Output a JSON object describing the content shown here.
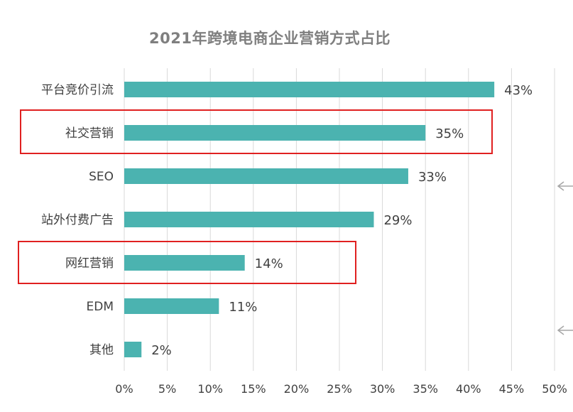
{
  "chart_data": {
    "type": "bar",
    "orientation": "horizontal",
    "title": "2021年跨境电商企业营销方式占比",
    "categories": [
      "平台竞价引流",
      "社交营销",
      "SEO",
      "站外付费广告",
      "网红营销",
      "EDM",
      "其他"
    ],
    "values": [
      43,
      35,
      33,
      29,
      14,
      11,
      2
    ],
    "data_labels": [
      "43%",
      "35%",
      "33%",
      "29%",
      "14%",
      "11%",
      "2%"
    ],
    "xlim": [
      0,
      50
    ],
    "x_ticks": [
      "0%",
      "5%",
      "10%",
      "15%",
      "20%",
      "25%",
      "30%",
      "35%",
      "40%",
      "45%",
      "50%"
    ],
    "xlabel": "",
    "ylabel": "",
    "grid": "vertical",
    "legend": "none",
    "highlighted_categories": [
      "社交营销",
      "网红营销"
    ]
  },
  "colors": {
    "bar": "#4bb3b0",
    "grid": "#d9d9d9",
    "text": "#404040",
    "title": "#7f7f7f",
    "highlight_box": "#e02020",
    "side_arrow": "#a6a6a6"
  },
  "icons": [
    "left-arrow-icon",
    "left-arrow-icon"
  ]
}
